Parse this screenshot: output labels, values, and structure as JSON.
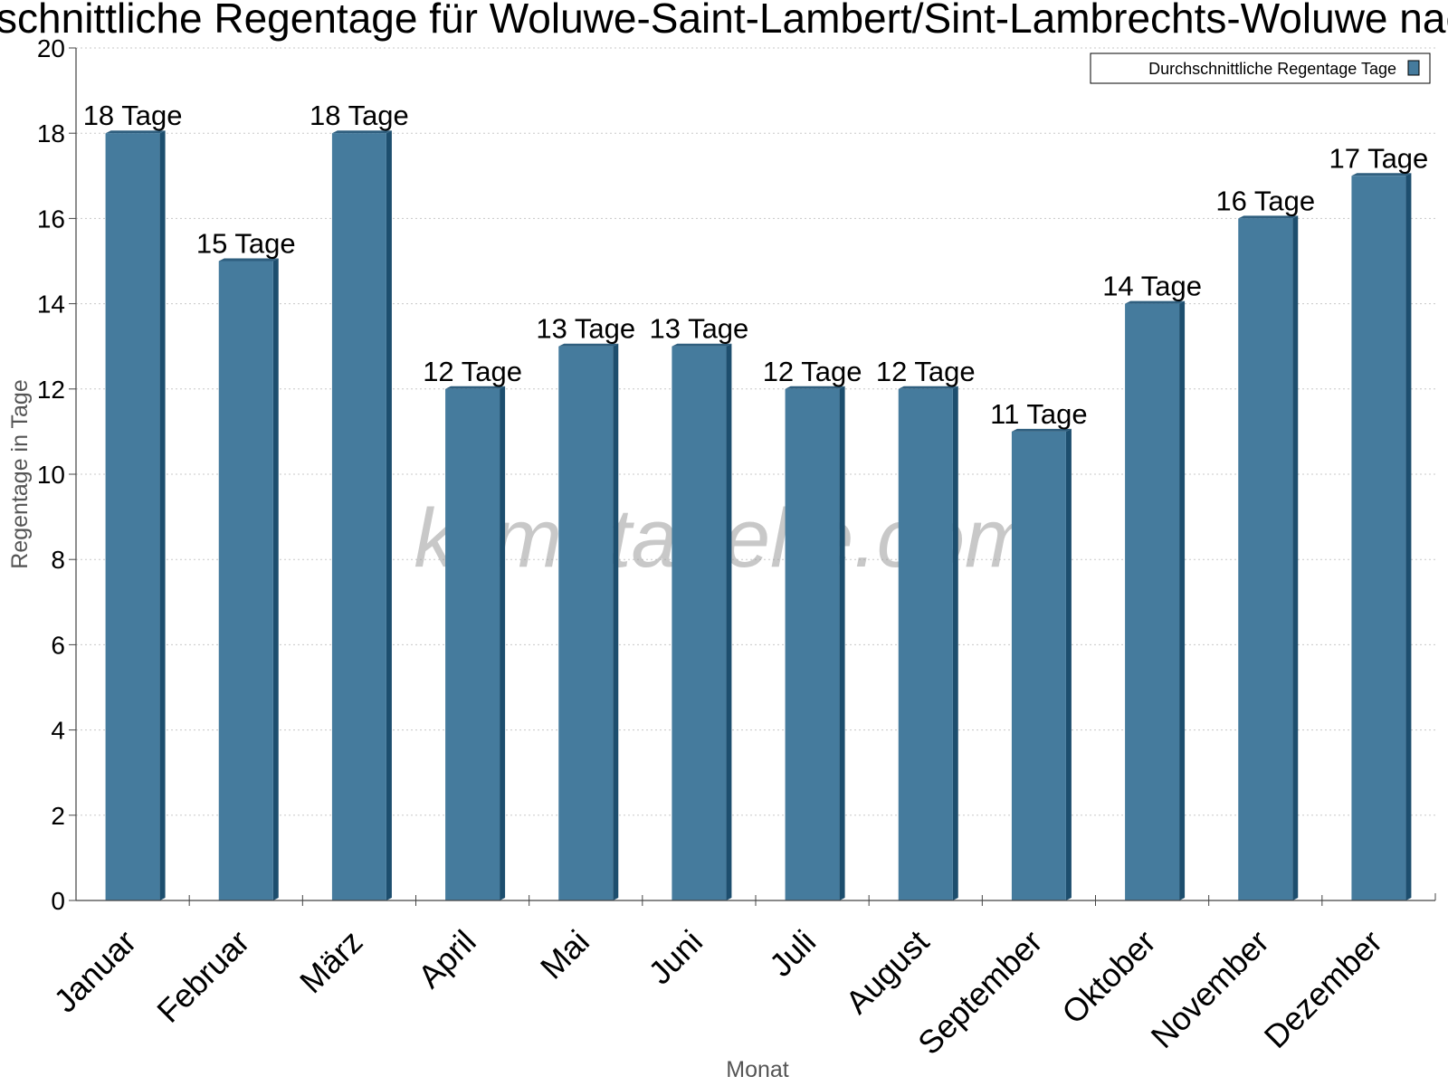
{
  "chart_data": {
    "type": "bar",
    "title": "Durchschnittliche Regentage für Woluwe-Saint-Lambert/Sint-Lambrechts-Woluwe nach Monat",
    "xlabel": "Monat",
    "ylabel": "Regentage in Tage",
    "categories": [
      "Januar",
      "Februar",
      "März",
      "April",
      "Mai",
      "Juni",
      "Juli",
      "August",
      "September",
      "Oktober",
      "November",
      "Dezember"
    ],
    "series": [
      {
        "name": "Durchschnittliche Regentage Tage",
        "values": [
          18,
          15,
          18,
          12,
          13,
          13,
          12,
          12,
          11,
          14,
          16,
          17
        ],
        "color": "#457b9d"
      }
    ],
    "data_labels": [
      "18 Tage",
      "15 Tage",
      "18 Tage",
      "12 Tage",
      "13 Tage",
      "13 Tage",
      "12 Tage",
      "12 Tage",
      "11 Tage",
      "14 Tage",
      "16 Tage",
      "17 Tage"
    ],
    "ylim": [
      0,
      20
    ],
    "yticks": [
      0,
      2,
      4,
      6,
      8,
      10,
      12,
      14,
      16,
      18,
      20
    ],
    "grid": true,
    "legend_position": "top-right"
  },
  "watermark": "klimatabelle.com",
  "colors": {
    "bar_face": "#457b9d",
    "bar_side": "#1d4e6e",
    "bar_top": "#2f5f7f",
    "grid": "#c8c8c8",
    "axis": "#444444"
  }
}
